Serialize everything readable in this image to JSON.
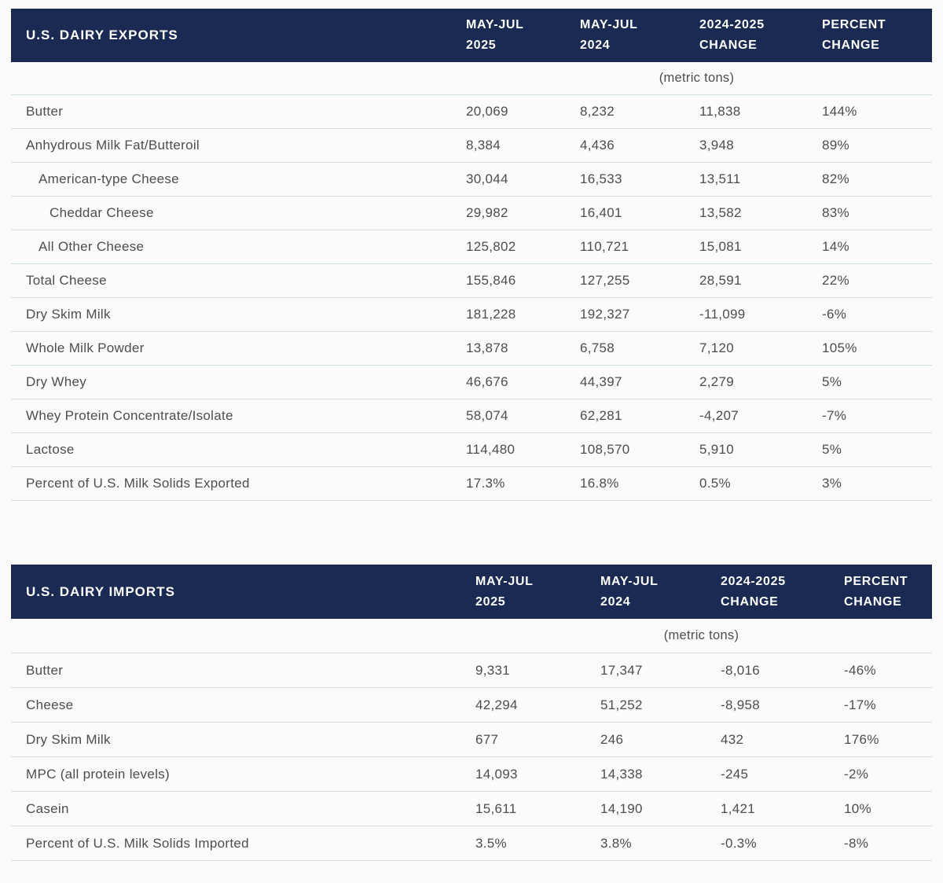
{
  "colors": {
    "band_bg": "#1b2a52",
    "band_text": "#ffffff",
    "row_text": "#4d4d4d",
    "divider": "#d2e0e5",
    "page_bg": "#fbfbf9"
  },
  "tables": [
    {
      "title": "U.S. DAIRY EXPORTS",
      "columns": [
        {
          "line1": "MAY-JUL",
          "line2": "2025"
        },
        {
          "line1": "MAY-JUL",
          "line2": "2024"
        },
        {
          "line1": "2024-2025",
          "line2": "CHANGE"
        },
        {
          "line1": "PERCENT",
          "line2": "CHANGE"
        }
      ],
      "unit_note": "(metric tons)",
      "rows": [
        {
          "label": "Butter",
          "indent": 0,
          "values": [
            "20,069",
            "8,232",
            "11,838",
            "144%"
          ]
        },
        {
          "label": "Anhydrous Milk Fat/Butteroil",
          "indent": 0,
          "values": [
            "8,384",
            "4,436",
            "3,948",
            "89%"
          ]
        },
        {
          "label": "American-type Cheese",
          "indent": 1,
          "values": [
            "30,044",
            "16,533",
            "13,511",
            "82%"
          ]
        },
        {
          "label": "Cheddar Cheese",
          "indent": 2,
          "values": [
            "29,982",
            "16,401",
            "13,582",
            "83%"
          ]
        },
        {
          "label": "All Other Cheese",
          "indent": 1,
          "values": [
            "125,802",
            "110,721",
            "15,081",
            "14%"
          ]
        },
        {
          "label": "Total Cheese",
          "indent": 0,
          "values": [
            "155,846",
            "127,255",
            "28,591",
            "22%"
          ]
        },
        {
          "label": "Dry Skim Milk",
          "indent": 0,
          "values": [
            "181,228",
            "192,327",
            "-11,099",
            "-6%"
          ]
        },
        {
          "label": "Whole Milk Powder",
          "indent": 0,
          "values": [
            "13,878",
            "6,758",
            "7,120",
            "105%"
          ]
        },
        {
          "label": "Dry Whey",
          "indent": 0,
          "values": [
            "46,676",
            "44,397",
            "2,279",
            "5%"
          ]
        },
        {
          "label": "Whey Protein Concentrate/Isolate",
          "indent": 0,
          "values": [
            "58,074",
            "62,281",
            "-4,207",
            "-7%"
          ]
        },
        {
          "label": "Lactose",
          "indent": 0,
          "values": [
            "114,480",
            "108,570",
            "5,910",
            "5%"
          ]
        },
        {
          "label": "Percent of U.S. Milk Solids Exported",
          "indent": 0,
          "values": [
            "17.3%",
            "16.8%",
            "0.5%",
            "3%"
          ]
        }
      ]
    },
    {
      "title": "U.S. DAIRY IMPORTS",
      "columns": [
        {
          "line1": "MAY-JUL",
          "line2": "2025"
        },
        {
          "line1": "MAY-JUL",
          "line2": "2024"
        },
        {
          "line1": "2024-2025",
          "line2": "CHANGE"
        },
        {
          "line1": "PERCENT",
          "line2": "CHANGE"
        }
      ],
      "unit_note": "(metric tons)",
      "rows": [
        {
          "label": "Butter",
          "indent": 0,
          "values": [
            "9,331",
            "17,347",
            "-8,016",
            "-46%"
          ]
        },
        {
          "label": "Cheese",
          "indent": 0,
          "values": [
            "42,294",
            "51,252",
            "-8,958",
            "-17%"
          ]
        },
        {
          "label": "Dry Skim Milk",
          "indent": 0,
          "values": [
            "677",
            "246",
            "432",
            "176%"
          ]
        },
        {
          "label": "MPC (all protein levels)",
          "indent": 0,
          "values": [
            "14,093",
            "14,338",
            "-245",
            "-2%"
          ]
        },
        {
          "label": "Casein",
          "indent": 0,
          "values": [
            "15,611",
            "14,190",
            "1,421",
            "10%"
          ]
        },
        {
          "label": "Percent of U.S. Milk Solids Imported",
          "indent": 0,
          "values": [
            "3.5%",
            "3.8%",
            "-0.3%",
            "-8%"
          ]
        }
      ]
    }
  ]
}
